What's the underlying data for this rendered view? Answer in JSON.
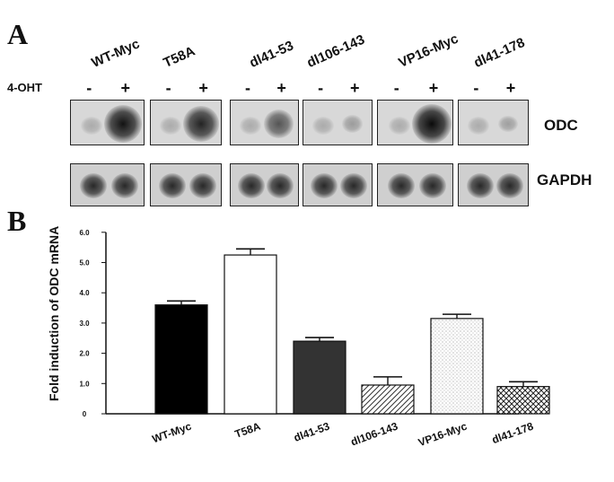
{
  "panel_a": {
    "letter": "A",
    "treatment_label": "4-OHT",
    "minus": "-",
    "plus": "+",
    "lanes": [
      "WT-Myc",
      "T58A",
      "dl41-53",
      "dl106-143",
      "VP16-Myc",
      "dl41-178"
    ],
    "blot_labels": {
      "odc": "ODC",
      "gapdh": "GAPDH"
    },
    "odc_band_intensity_plus": [
      0.95,
      0.85,
      0.55,
      0.12,
      1.0,
      0.1
    ]
  },
  "panel_b": {
    "letter": "B"
  },
  "chart_data": {
    "type": "bar",
    "title": "",
    "ylabel": "Fold induction of ODC mRNA",
    "xlabel": "",
    "ylim": [
      0,
      6
    ],
    "yticks": [
      "0",
      "1.0",
      "2.0",
      "3.0",
      "4.0",
      "5.0",
      "6.0"
    ],
    "categories": [
      "WT-Myc",
      "T58A",
      "dl41-53",
      "dl106-143",
      "VP16-Myc",
      "dl41-178"
    ],
    "values": [
      3.6,
      5.25,
      2.4,
      0.95,
      3.15,
      0.9
    ],
    "errors": [
      0.13,
      0.2,
      0.12,
      0.27,
      0.14,
      0.16
    ],
    "fills": [
      "solid-black",
      "white",
      "dark-gray",
      "diagonal-hatch",
      "light-dotted",
      "crosshatch"
    ],
    "grid": false
  }
}
